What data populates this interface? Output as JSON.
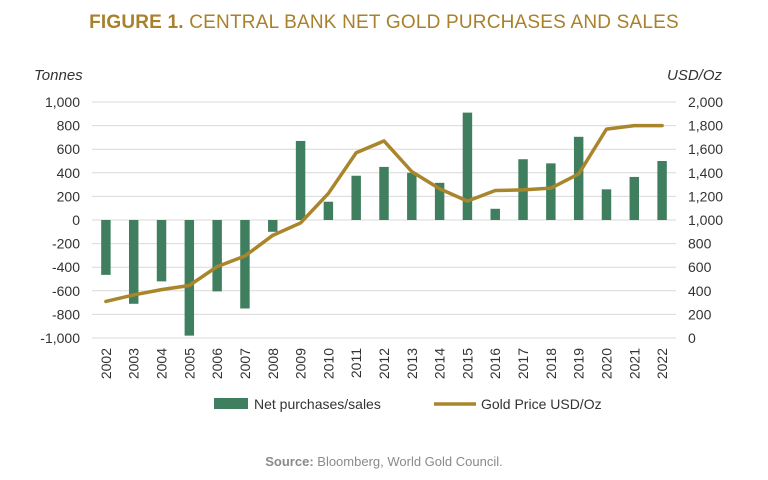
{
  "figure": {
    "title_lead": "FIGURE 1.",
    "title_rest": " CENTRAL BANK NET GOLD PURCHASES AND SALES",
    "source_label": "Source:",
    "source_text": " Bloomberg, World Gold Council."
  },
  "colors": {
    "title": "#A9802B",
    "bar": "#3F7F5F",
    "line": "#A9862B",
    "grid": "#d9d9d9",
    "axis_text": "#333333"
  },
  "chart_data": {
    "type": "bar+line",
    "categories": [
      "2002",
      "2003",
      "2004",
      "2005",
      "2006",
      "2007",
      "2008",
      "2009",
      "2010",
      "2011",
      "2012",
      "2013",
      "2014",
      "2015",
      "2016",
      "2017",
      "2018",
      "2019",
      "2020",
      "2021",
      "2022"
    ],
    "series": [
      {
        "name": "Net purchases/sales",
        "type": "bar",
        "axis": "left",
        "values": [
          -465,
          -710,
          -520,
          -980,
          -605,
          -750,
          -100,
          670,
          155,
          375,
          450,
          400,
          315,
          910,
          95,
          515,
          480,
          705,
          260,
          365,
          500
        ]
      },
      {
        "name": "Gold Price USD/Oz",
        "type": "line",
        "axis": "right",
        "values": [
          310,
          365,
          410,
          445,
          605,
          695,
          870,
          975,
          1225,
          1570,
          1670,
          1410,
          1265,
          1160,
          1250,
          1255,
          1270,
          1390,
          1770,
          1800,
          1800
        ]
      }
    ],
    "ylabel_left": "Tonnes",
    "ylabel_right": "USD/Oz",
    "ylim_left": [
      -1000,
      1000
    ],
    "ylim_right": [
      0,
      2000
    ],
    "yticks_left": [
      "-1,000",
      "-800",
      "-600",
      "-400",
      "-200",
      "0",
      "200",
      "400",
      "600",
      "800",
      "1,000"
    ],
    "yticks_right": [
      "0",
      "200",
      "400",
      "600",
      "800",
      "1,000",
      "1,200",
      "1,400",
      "1,600",
      "1,800",
      "2,000"
    ],
    "grid": true,
    "legend_position": "bottom"
  }
}
